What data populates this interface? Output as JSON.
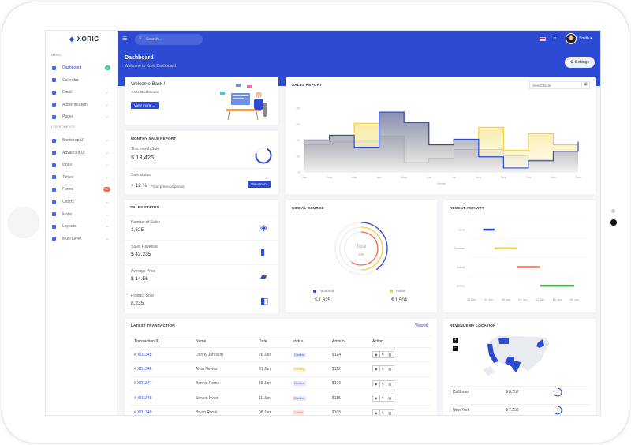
{
  "brand": {
    "name": "XORIC",
    "accent": "#2d4bd2"
  },
  "sidebar": {
    "menu_label": "MENU",
    "components_label": "COMPONENTS",
    "items": [
      {
        "label": "Dashboard",
        "icon": "monitor-icon",
        "badge": "3",
        "badge_color": "#34c38f",
        "active": true
      },
      {
        "label": "Calendar",
        "icon": "calendar-icon"
      },
      {
        "label": "Email",
        "icon": "mail-icon",
        "chevron": true
      },
      {
        "label": "Authentication",
        "icon": "lock-icon",
        "chevron": true
      },
      {
        "label": "Pages",
        "icon": "pages-icon",
        "chevron": true
      }
    ],
    "components": [
      {
        "label": "Bootstrap UI",
        "icon": "bootstrap-icon",
        "chevron": true
      },
      {
        "label": "Advanced UI",
        "icon": "layers-icon",
        "chevron": true
      },
      {
        "label": "Icons",
        "icon": "icons-icon",
        "chevron": true
      },
      {
        "label": "Tables",
        "icon": "table-icon",
        "chevron": true
      },
      {
        "label": "Forms",
        "icon": "form-icon",
        "badge": "07",
        "badge_color": "#f46a4a"
      },
      {
        "label": "Charts",
        "icon": "pie-chart-icon",
        "chevron": true
      },
      {
        "label": "Maps",
        "icon": "map-icon",
        "chevron": true
      },
      {
        "label": "Layouts",
        "icon": "layout-icon",
        "chevron": true
      },
      {
        "label": "Multi Level",
        "icon": "share-icon",
        "chevron": true
      }
    ]
  },
  "topbar": {
    "search_placeholder": "Search...",
    "user": "Smith",
    "settings": "Settings"
  },
  "page": {
    "title": "Dashboard",
    "subtitle": "Welcome to Xoric Dashboard"
  },
  "welcome": {
    "title": "Welcome Back !",
    "sub": "Xoric Dashboard",
    "button": "View more →"
  },
  "monthly": {
    "title": "MONTHY SALE REPORT",
    "label": "This month Sale",
    "value": "$ 13,425",
    "status_label": "Sale status",
    "change": "+ 12 %",
    "change_note": "From previous period",
    "button": "View more"
  },
  "sales_status": {
    "title": "SALES STATUS",
    "items": [
      {
        "label": "Number of Sales",
        "value": "1,625",
        "icon": "layers-icon"
      },
      {
        "label": "Sales Revenue",
        "value": "$ 42,235",
        "icon": "bar-chart-icon"
      },
      {
        "label": "Average Price",
        "value": "$ 14.56",
        "icon": "ticket-icon"
      },
      {
        "label": "Product Sold",
        "value": "8,235",
        "icon": "box-icon"
      }
    ]
  },
  "chart_data": [
    {
      "type": "line",
      "title": "SALES REPORT",
      "step": true,
      "xlabel": "Month",
      "ylim": [
        0,
        80
      ],
      "yticks": [
        0,
        20,
        40,
        60,
        80
      ],
      "categories": [
        "Jan",
        "Feb",
        "Mar",
        "Apr",
        "May",
        "Jun",
        "Jul",
        "Aug",
        "Sep",
        "Oct",
        "Nov",
        "Dec"
      ],
      "series": [
        {
          "color": "#c8c8d0",
          "values": [
            34,
            40,
            40,
            45,
            12,
            17,
            28,
            28,
            20,
            15,
            25,
            26
          ]
        },
        {
          "color": "#f1d43c",
          "values": [
            40,
            46,
            61,
            75,
            62,
            34,
            41,
            56,
            27,
            48,
            34,
            34
          ]
        },
        {
          "color": "#2d49d0",
          "values": [
            40,
            46,
            31,
            75,
            62,
            34,
            41,
            19,
            5,
            14,
            26,
            38
          ]
        }
      ],
      "date_picker_placeholder": "Select Date"
    },
    {
      "type": "bar",
      "title": "RECENT ACTIVITY",
      "orientation": "horizontal-range",
      "xticks": [
        "31 Dec",
        "03 Jan",
        "06 Jan",
        "09 Jan",
        "12 Jan",
        "15 Jan",
        "18 Jan"
      ],
      "tasks": [
        {
          "name": "Jack",
          "start": "02 Jan",
          "end": "04 Jan",
          "color": "#2d49d0"
        },
        {
          "name": "Thomas",
          "start": "04 Jan",
          "end": "08 Jan",
          "color": "#f1d43c"
        },
        {
          "name": "David",
          "start": "08 Jan",
          "end": "12 Jan",
          "color": "#f46a4a"
        },
        {
          "name": "James",
          "start": "12 Jan",
          "end": "18 Jan",
          "color": "#3dbb4a"
        }
      ]
    },
    {
      "type": "pie",
      "title": "SOCIAL SOURCE",
      "center_label": "Total",
      "center_value": "166",
      "rings": [
        {
          "color": "#2d49d0",
          "fraction": 0.4
        },
        {
          "color": "#f1d43c",
          "fraction": 0.5
        },
        {
          "color": "#f46a4a",
          "fraction": 0.6
        }
      ],
      "legend": [
        {
          "name": "Facebook",
          "value": "$ 1,625",
          "color": "#2d49d0"
        },
        {
          "name": "Twitter",
          "value": "$ 1,504",
          "color": "#f1d43c"
        }
      ]
    }
  ],
  "transactions": {
    "title": "LATEST TRANSACTION",
    "view_all": "View all",
    "columns": [
      "Transaction ID",
      "Name",
      "Date",
      "status",
      "Amount",
      "Action"
    ],
    "rows": [
      [
        "# XO1345",
        "Danny Johnson",
        "26 Jan",
        "Confirm",
        "$124"
      ],
      [
        "# XO1346",
        "Alvin Newton",
        "21 Jan",
        "Pending",
        "$112"
      ],
      [
        "# XO1347",
        "Bennie Perez",
        "15 Jan",
        "Confirm",
        "$106"
      ],
      [
        "# XO1348",
        "Steven Kwon",
        "11 Jan",
        "Confirm",
        "$115"
      ],
      [
        "# XO1349",
        "Bryan Roark",
        "08 Jan",
        "Cancel",
        "$105"
      ]
    ],
    "status_colors": {
      "Confirm": [
        "#e3e8fb",
        "#2d49d0"
      ],
      "Pending": [
        "#fdf6d8",
        "#d8b300"
      ],
      "Cancel": [
        "#fde5e0",
        "#f46a4a"
      ]
    }
  },
  "revenue": {
    "title": "REVENUE BY LOCATION",
    "zoom_in": "+",
    "zoom_out": "−",
    "rows": [
      {
        "state": "California",
        "value": "$ 8,257",
        "fraction": 0.7
      },
      {
        "state": "New York",
        "value": "$ 7,253",
        "fraction": 0.6
      }
    ]
  }
}
